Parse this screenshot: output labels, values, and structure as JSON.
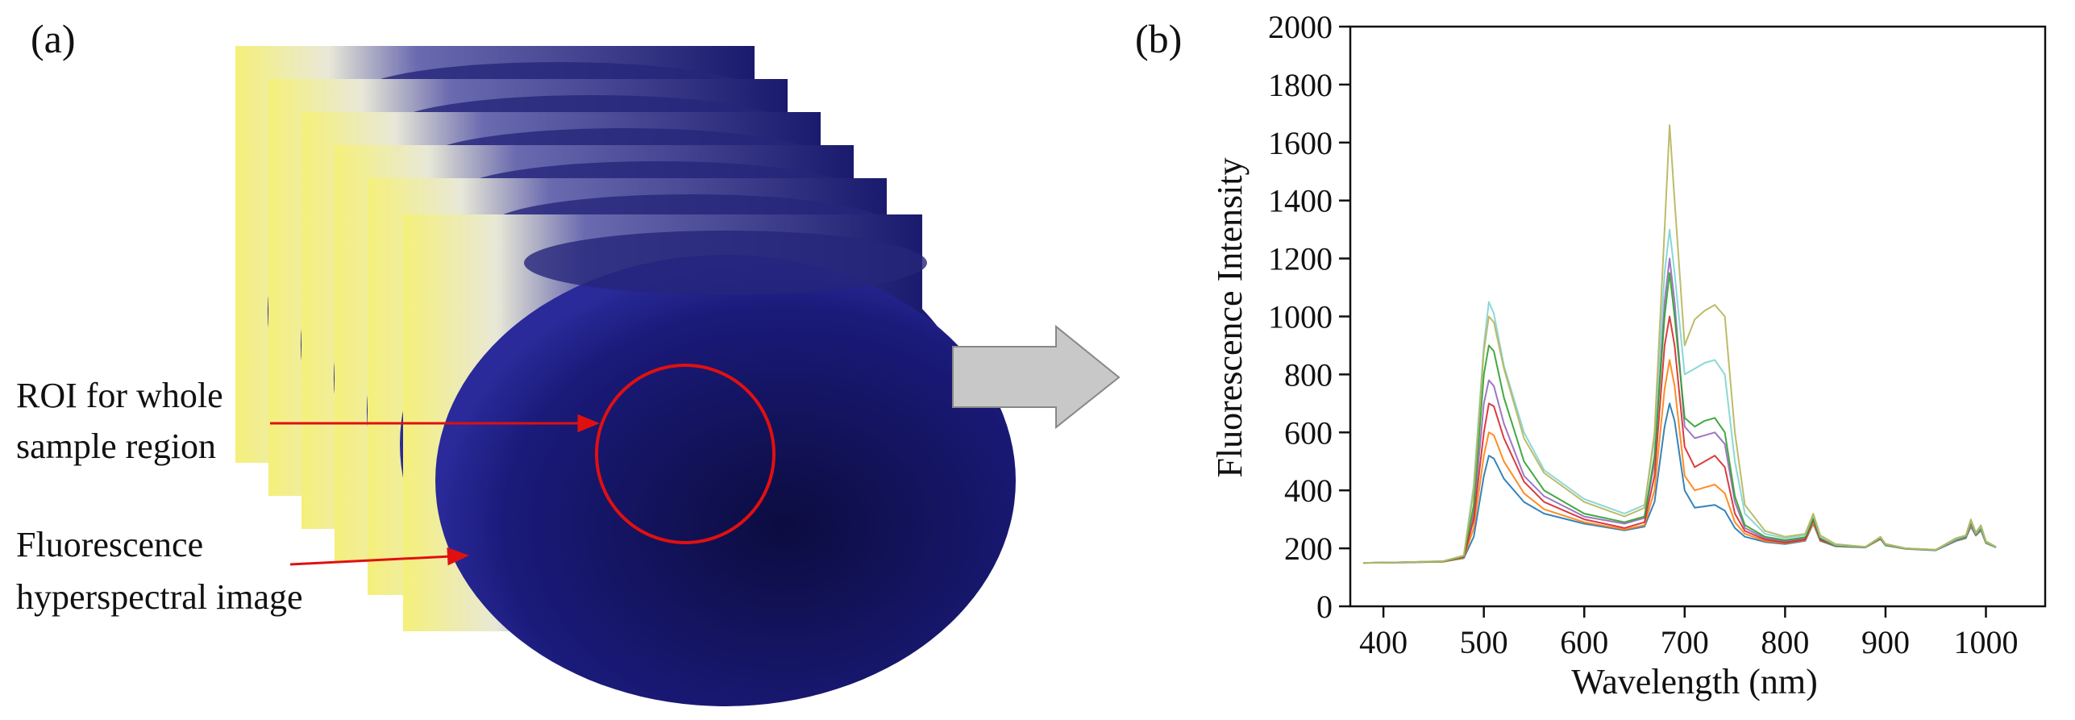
{
  "panel_a": {
    "label": "(a)",
    "annotations": [
      {
        "lines": [
          "ROI for whole",
          "sample region"
        ]
      },
      {
        "lines": [
          "Fluorescence",
          "hyperspectral image"
        ]
      }
    ]
  },
  "chart_data": {
    "type": "line",
    "panel_label": "(b)",
    "x_label": "Wavelength (nm)",
    "y_label": "Fluorescence Intensity",
    "x": [
      380,
      420,
      460,
      480,
      490,
      500,
      505,
      510,
      520,
      540,
      560,
      600,
      640,
      660,
      670,
      680,
      685,
      690,
      700,
      710,
      720,
      730,
      740,
      750,
      760,
      780,
      800,
      820,
      828,
      835,
      850,
      880,
      895,
      900,
      920,
      950,
      970,
      980,
      985,
      990,
      995,
      1000,
      1010
    ],
    "series": [
      {
        "color": "#1f77b4",
        "values": [
          150,
          151,
          154,
          166,
          240,
          450,
          520,
          510,
          440,
          360,
          320,
          285,
          262,
          275,
          360,
          620,
          700,
          640,
          400,
          340,
          345,
          350,
          330,
          270,
          240,
          222,
          215,
          226,
          285,
          226,
          207,
          203,
          232,
          210,
          198,
          193,
          225,
          235,
          275,
          244,
          262,
          218,
          203
        ]
      },
      {
        "color": "#ff7f0e",
        "values": [
          150,
          152,
          154,
          168,
          270,
          520,
          600,
          590,
          500,
          390,
          335,
          290,
          265,
          280,
          400,
          750,
          850,
          760,
          450,
          400,
          410,
          420,
          390,
          290,
          250,
          225,
          218,
          228,
          290,
          228,
          208,
          204,
          233,
          211,
          199,
          194,
          227,
          237,
          280,
          246,
          265,
          219,
          204
        ]
      },
      {
        "color": "#9467bd",
        "values": [
          150,
          152,
          155,
          171,
          320,
          700,
          780,
          760,
          630,
          450,
          380,
          310,
          285,
          305,
          500,
          1050,
          1200,
          1050,
          620,
          580,
          590,
          600,
          560,
          360,
          270,
          235,
          225,
          235,
          300,
          232,
          209,
          204,
          235,
          212,
          199,
          194,
          228,
          238,
          285,
          248,
          268,
          220,
          204
        ]
      },
      {
        "color": "#d62728",
        "values": [
          150,
          152,
          155,
          170,
          300,
          600,
          700,
          690,
          580,
          430,
          360,
          300,
          270,
          290,
          450,
          900,
          1000,
          900,
          550,
          480,
          500,
          520,
          480,
          320,
          260,
          230,
          220,
          230,
          300,
          230,
          210,
          205,
          235,
          215,
          200,
          195,
          230,
          240,
          290,
          250,
          270,
          220,
          205
        ]
      },
      {
        "color": "#2ca02c",
        "values": [
          150,
          152,
          155,
          172,
          350,
          800,
          900,
          880,
          720,
          500,
          400,
          320,
          290,
          310,
          520,
          1000,
          1150,
          1000,
          650,
          620,
          640,
          650,
          600,
          380,
          280,
          240,
          228,
          238,
          305,
          235,
          210,
          204,
          236,
          212,
          199,
          194,
          230,
          240,
          290,
          250,
          270,
          220,
          204
        ]
      },
      {
        "color": "#7fd3d3",
        "values": [
          150,
          152,
          156,
          175,
          420,
          900,
          1050,
          1010,
          830,
          600,
          470,
          370,
          320,
          350,
          580,
          1150,
          1300,
          1150,
          800,
          820,
          840,
          850,
          800,
          500,
          320,
          250,
          235,
          245,
          315,
          240,
          212,
          205,
          238,
          214,
          200,
          195,
          232,
          243,
          295,
          252,
          275,
          222,
          205
        ]
      },
      {
        "color": "#b5b55a",
        "values": [
          150,
          152,
          156,
          175,
          400,
          880,
          1000,
          980,
          820,
          580,
          460,
          360,
          310,
          340,
          600,
          1300,
          1660,
          1400,
          900,
          990,
          1020,
          1040,
          1000,
          600,
          350,
          260,
          240,
          250,
          320,
          245,
          215,
          205,
          240,
          215,
          200,
          195,
          235,
          245,
          300,
          255,
          280,
          225,
          205
        ]
      }
    ],
    "xlim": [
      367,
      1059
    ],
    "ylim": [
      0,
      2000
    ],
    "xticks": [
      400,
      500,
      600,
      700,
      800,
      900,
      1000
    ],
    "yticks": [
      0,
      200,
      400,
      600,
      800,
      1000,
      1200,
      1400,
      1600,
      1800,
      2000
    ]
  }
}
